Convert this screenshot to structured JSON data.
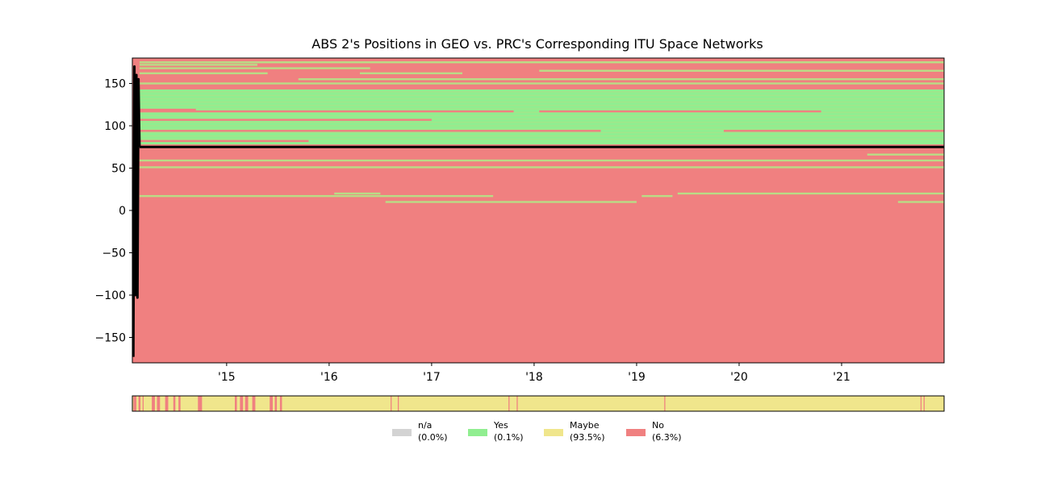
{
  "chart_data": {
    "type": "heatmap",
    "title": "ABS 2's Positions in GEO vs. PRC's Corresponding ITU Space Networks",
    "xlabel": "",
    "ylabel": "",
    "x_range": [
      2014.08,
      2022.0
    ],
    "ylim": [
      -180,
      180
    ],
    "x_ticks": [
      {
        "value": 2015,
        "label": "'15"
      },
      {
        "value": 2016,
        "label": "'16"
      },
      {
        "value": 2017,
        "label": "'17"
      },
      {
        "value": 2018,
        "label": "'18"
      },
      {
        "value": 2019,
        "label": "'19"
      },
      {
        "value": 2020,
        "label": "'20"
      },
      {
        "value": 2021,
        "label": "'21"
      }
    ],
    "y_ticks": [
      {
        "value": 150,
        "label": "150"
      },
      {
        "value": 100,
        "label": "100"
      },
      {
        "value": 50,
        "label": "50"
      },
      {
        "value": 0,
        "label": "0"
      },
      {
        "value": -50,
        "label": "−50"
      },
      {
        "value": -100,
        "label": "−100"
      },
      {
        "value": -150,
        "label": "−150"
      }
    ],
    "background_status": "No",
    "network_coverage": [
      {
        "status": "Yes",
        "x0": 2014.15,
        "x1": 2022.0,
        "y0": 78,
        "y1": 143
      },
      {
        "status": "No",
        "x0": 2014.08,
        "x1": 2022.0,
        "y0": 143,
        "y1": 180
      }
    ],
    "network_bands": [
      {
        "status": "Yes",
        "x0": 2014.15,
        "x1": 2022.0,
        "y": 175
      },
      {
        "status": "Yes",
        "x0": 2014.15,
        "x1": 2015.3,
        "y": 172
      },
      {
        "status": "Yes",
        "x0": 2014.15,
        "x1": 2016.4,
        "y": 168
      },
      {
        "status": "Yes",
        "x0": 2014.15,
        "x1": 2015.4,
        "y": 162
      },
      {
        "status": "Yes",
        "x0": 2016.3,
        "x1": 2017.3,
        "y": 162
      },
      {
        "status": "Yes",
        "x0": 2018.05,
        "x1": 2022.0,
        "y": 165
      },
      {
        "status": "Yes",
        "x0": 2015.7,
        "x1": 2022.0,
        "y": 155
      },
      {
        "status": "Yes",
        "x0": 2014.15,
        "x1": 2022.0,
        "y": 150
      },
      {
        "status": "No",
        "x0": 2014.15,
        "x1": 2014.7,
        "y": 119
      },
      {
        "status": "No",
        "x0": 2014.15,
        "x1": 2017.8,
        "y": 117
      },
      {
        "status": "No",
        "x0": 2018.05,
        "x1": 2020.8,
        "y": 117
      },
      {
        "status": "No",
        "x0": 2014.15,
        "x1": 2017.0,
        "y": 107
      },
      {
        "status": "No",
        "x0": 2014.15,
        "x1": 2018.65,
        "y": 94
      },
      {
        "status": "No",
        "x0": 2019.85,
        "x1": 2022.0,
        "y": 94
      },
      {
        "status": "No",
        "x0": 2014.15,
        "x1": 2015.8,
        "y": 82
      },
      {
        "status": "Yes",
        "x0": 2021.25,
        "x1": 2022.0,
        "y": 66
      },
      {
        "status": "Yes",
        "x0": 2014.15,
        "x1": 2022.0,
        "y": 59
      },
      {
        "status": "Yes",
        "x0": 2014.15,
        "x1": 2022.0,
        "y": 51
      },
      {
        "status": "Yes",
        "x0": 2016.05,
        "x1": 2016.5,
        "y": 20
      },
      {
        "status": "Yes",
        "x0": 2014.15,
        "x1": 2017.6,
        "y": 17
      },
      {
        "status": "Yes",
        "x0": 2019.05,
        "x1": 2019.35,
        "y": 17
      },
      {
        "status": "Yes",
        "x0": 2019.4,
        "x1": 2022.0,
        "y": 20
      },
      {
        "status": "Yes",
        "x0": 2016.55,
        "x1": 2019.0,
        "y": 10
      },
      {
        "status": "Yes",
        "x0": 2021.55,
        "x1": 2022.0,
        "y": 10
      }
    ],
    "position_track": {
      "color": "#000000",
      "initial_spike": [
        {
          "x": 2014.09,
          "y": -173
        },
        {
          "x": 2014.1,
          "y": 170
        },
        {
          "x": 2014.11,
          "y": -100
        },
        {
          "x": 2014.12,
          "y": 160
        },
        {
          "x": 2014.13,
          "y": -103
        },
        {
          "x": 2014.14,
          "y": 155
        },
        {
          "x": 2014.15,
          "y": 75
        }
      ],
      "steady_position": {
        "x0": 2014.15,
        "x1": 2022.0,
        "y": 75
      }
    },
    "status_strip": {
      "base_status": "Maybe",
      "segments": [
        {
          "status": "No",
          "x0": 2014.09,
          "x1": 2014.12
        },
        {
          "status": "No",
          "x0": 2014.14,
          "x1": 2014.16
        },
        {
          "status": "No",
          "x0": 2014.18,
          "x1": 2014.19
        },
        {
          "status": "No",
          "x0": 2014.27,
          "x1": 2014.3
        },
        {
          "status": "No",
          "x0": 2014.32,
          "x1": 2014.35
        },
        {
          "status": "No",
          "x0": 2014.4,
          "x1": 2014.43
        },
        {
          "status": "No",
          "x0": 2014.48,
          "x1": 2014.5
        },
        {
          "status": "No",
          "x0": 2014.53,
          "x1": 2014.55
        },
        {
          "status": "No",
          "x0": 2014.72,
          "x1": 2014.76
        },
        {
          "status": "No",
          "x0": 2015.08,
          "x1": 2015.1
        },
        {
          "status": "No",
          "x0": 2015.13,
          "x1": 2015.16
        },
        {
          "status": "No",
          "x0": 2015.18,
          "x1": 2015.21
        },
        {
          "status": "No",
          "x0": 2015.25,
          "x1": 2015.28
        },
        {
          "status": "No",
          "x0": 2015.42,
          "x1": 2015.45
        },
        {
          "status": "No",
          "x0": 2015.47,
          "x1": 2015.49
        },
        {
          "status": "No",
          "x0": 2015.52,
          "x1": 2015.54
        },
        {
          "status": "No",
          "x0": 2016.6,
          "x1": 2016.61
        },
        {
          "status": "No",
          "x0": 2016.67,
          "x1": 2016.68
        },
        {
          "status": "No",
          "x0": 2017.75,
          "x1": 2017.76
        },
        {
          "status": "No",
          "x0": 2017.83,
          "x1": 2017.84
        },
        {
          "status": "No",
          "x0": 2019.27,
          "x1": 2019.28
        },
        {
          "status": "No",
          "x0": 2021.77,
          "x1": 2021.78
        },
        {
          "status": "No",
          "x0": 2021.8,
          "x1": 2021.81
        }
      ]
    },
    "legend": {
      "placement": "bottom-center",
      "entries": [
        {
          "status": "n/a",
          "label": "n/a",
          "pct": "(0.0%)",
          "color": "#d3d3d3"
        },
        {
          "status": "Yes",
          "label": "Yes",
          "pct": "(0.1%)",
          "color": "#90ee90"
        },
        {
          "status": "Maybe",
          "label": "Maybe",
          "pct": "(93.5%)",
          "color": "#f0e68c"
        },
        {
          "status": "No",
          "label": "No",
          "pct": "(6.3%)",
          "color": "#f08080"
        }
      ]
    },
    "colors": {
      "n/a": "#d3d3d3",
      "Yes": "#90ee90",
      "Maybe": "#f0e68c",
      "No": "#f08080",
      "track": "#000000"
    }
  }
}
